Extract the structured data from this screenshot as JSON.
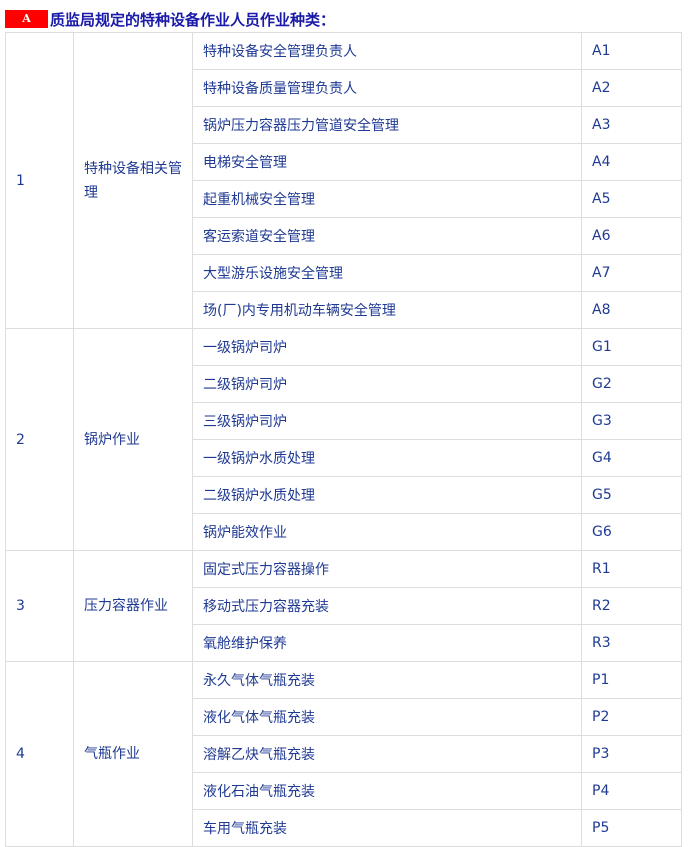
{
  "heading": {
    "badge": "A",
    "title": "质监局规定的特种设备作业人员作业种类："
  },
  "colors": {
    "badge": "#ff0000",
    "text": "#1f3a93",
    "border": "#dddddd"
  },
  "groups": [
    {
      "no": "1",
      "category": "特种设备相关管理",
      "items": [
        {
          "name": "特种设备安全管理负责人",
          "code": "A1"
        },
        {
          "name": "特种设备质量管理负责人",
          "code": "A2"
        },
        {
          "name": "锅炉压力容器压力管道安全管理",
          "code": "A3"
        },
        {
          "name": "电梯安全管理",
          "code": "A4"
        },
        {
          "name": "起重机械安全管理",
          "code": "A5"
        },
        {
          "name": "客运索道安全管理",
          "code": "A6"
        },
        {
          "name": "大型游乐设施安全管理",
          "code": "A7"
        },
        {
          "name": "场(厂)内专用机动车辆安全管理",
          "code": "A8"
        }
      ]
    },
    {
      "no": "2",
      "category": "锅炉作业",
      "items": [
        {
          "name": "一级锅炉司炉",
          "code": "G1"
        },
        {
          "name": "二级锅炉司炉",
          "code": "G2"
        },
        {
          "name": "三级锅炉司炉",
          "code": "G3"
        },
        {
          "name": "一级锅炉水质处理",
          "code": "G4"
        },
        {
          "name": "二级锅炉水质处理",
          "code": "G5"
        },
        {
          "name": "锅炉能效作业",
          "code": "G6"
        }
      ]
    },
    {
      "no": "3",
      "category": "压力容器作业",
      "items": [
        {
          "name": "固定式压力容器操作",
          "code": "R1"
        },
        {
          "name": "移动式压力容器充装",
          "code": "R2"
        },
        {
          "name": "氧舱维护保养",
          "code": "R3"
        }
      ]
    },
    {
      "no": "4",
      "category": "气瓶作业",
      "items": [
        {
          "name": "永久气体气瓶充装",
          "code": "P1"
        },
        {
          "name": "液化气体气瓶充装",
          "code": "P2"
        },
        {
          "name": "溶解乙炔气瓶充装",
          "code": "P3"
        },
        {
          "name": "液化石油气瓶充装",
          "code": "P4"
        },
        {
          "name": "车用气瓶充装",
          "code": "P5"
        }
      ]
    }
  ]
}
